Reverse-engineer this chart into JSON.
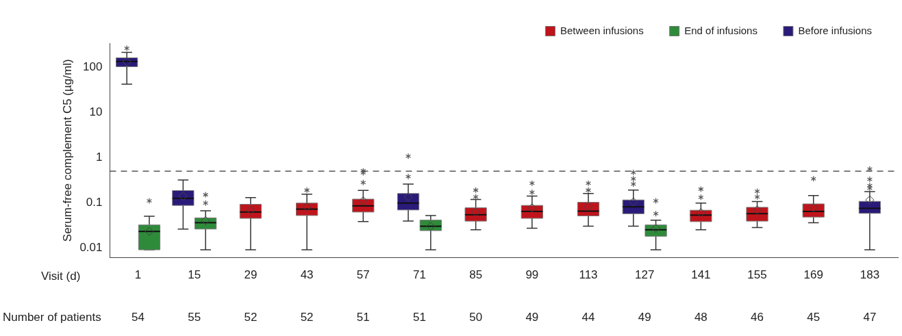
{
  "chart_data": {
    "type": "box",
    "xlabel": "Visit (d)",
    "ylabel": "Serum-free complement C5 (µg/ml)",
    "categories": [
      "1",
      "15",
      "29",
      "43",
      "57",
      "71",
      "85",
      "99",
      "113",
      "127",
      "141",
      "155",
      "169",
      "183"
    ],
    "log": "y",
    "ylim": [
      0.006,
      350
    ],
    "yticks": [
      0.01,
      0.1,
      1,
      10,
      100
    ],
    "grid": false,
    "legend": "top right",
    "ref_lines": [
      {
        "axis": "y",
        "value": 0.5,
        "line_style": "dashed"
      }
    ],
    "series": [
      {
        "name": "Before infusions",
        "color": "#2a1a7a",
        "boxes": [
          {
            "low": 43,
            "q1": 105,
            "median": 137,
            "q3": 165,
            "high": 218,
            "mean": 135,
            "outliers": [
              270
            ]
          },
          {
            "low": 0.026,
            "q1": 0.087,
            "median": 0.125,
            "q3": 0.186,
            "high": 0.32,
            "mean": 0.14
          },
          null,
          null,
          null,
          {
            "low": 0.039,
            "q1": 0.069,
            "median": 0.098,
            "q3": 0.16,
            "high": 0.26,
            "mean": 0.134,
            "outliers": [
              1.08,
              0.38
            ]
          },
          null,
          null,
          null,
          {
            "low": 0.03,
            "q1": 0.057,
            "median": 0.081,
            "q3": 0.115,
            "high": 0.19,
            "mean": 0.104,
            "outliers": [
              0.47,
              0.34,
              0.26
            ]
          },
          null,
          null,
          null,
          {
            "low": 0.009,
            "q1": 0.058,
            "median": 0.075,
            "q3": 0.107,
            "high": 0.177,
            "mean": 0.115,
            "outliers": [
              0.56,
              0.33,
              0.24,
              0.21
            ]
          }
        ]
      },
      {
        "name": "End of infusions",
        "color": "#2e8b3a",
        "boxes": [
          {
            "low": 0.009,
            "q1": 0.009,
            "median": 0.023,
            "q3": 0.032,
            "high": 0.05,
            "mean": 0.023,
            "outliers": [
              0.11
            ]
          },
          {
            "low": 0.009,
            "q1": 0.026,
            "median": 0.036,
            "q3": 0.046,
            "high": 0.066,
            "mean": 0.04,
            "outliers": [
              0.15,
              0.098
            ]
          },
          null,
          null,
          null,
          {
            "low": 0.009,
            "q1": 0.024,
            "median": 0.03,
            "q3": 0.041,
            "high": 0.052,
            "mean": 0.03
          },
          null,
          null,
          null,
          {
            "low": 0.009,
            "q1": 0.018,
            "median": 0.025,
            "q3": 0.032,
            "high": 0.041,
            "mean": 0.027,
            "outliers": [
              0.11,
              0.057
            ]
          },
          null,
          null,
          null,
          null
        ]
      },
      {
        "name": "Between infusions",
        "color": "#c0141c",
        "boxes": [
          null,
          null,
          {
            "low": 0.009,
            "q1": 0.045,
            "median": 0.062,
            "q3": 0.092,
            "high": 0.13,
            "mean": 0.068
          },
          {
            "low": 0.009,
            "q1": 0.052,
            "median": 0.072,
            "q3": 0.098,
            "high": 0.155,
            "mean": 0.08,
            "outliers": [
              0.19
            ]
          },
          {
            "low": 0.038,
            "q1": 0.062,
            "median": 0.085,
            "q3": 0.12,
            "high": 0.188,
            "mean": 0.11,
            "outliers": [
              0.51,
              0.46,
              0.28
            ]
          },
          null,
          {
            "low": 0.025,
            "q1": 0.039,
            "median": 0.054,
            "q3": 0.077,
            "high": 0.118,
            "mean": 0.062,
            "outliers": [
              0.19,
              0.134
            ]
          },
          {
            "low": 0.027,
            "q1": 0.045,
            "median": 0.064,
            "q3": 0.087,
            "high": 0.14,
            "mean": 0.077,
            "outliers": [
              0.27,
              0.17
            ]
          },
          {
            "low": 0.03,
            "q1": 0.051,
            "median": 0.065,
            "q3": 0.102,
            "high": 0.16,
            "mean": 0.083,
            "outliers": [
              0.27,
              0.19
            ]
          },
          null,
          {
            "low": 0.025,
            "q1": 0.038,
            "median": 0.053,
            "q3": 0.068,
            "high": 0.098,
            "mean": 0.06,
            "outliers": [
              0.2,
              0.132
            ]
          },
          {
            "low": 0.028,
            "q1": 0.039,
            "median": 0.057,
            "q3": 0.079,
            "high": 0.106,
            "mean": 0.069,
            "outliers": [
              0.18,
              0.134
            ]
          },
          {
            "low": 0.036,
            "q1": 0.048,
            "median": 0.064,
            "q3": 0.094,
            "high": 0.144,
            "mean": 0.077,
            "outliers": [
              0.34
            ]
          },
          null
        ]
      }
    ],
    "annotations": [
      "Number of patients",
      "54",
      "55",
      "52",
      "52",
      "51",
      "51",
      "50",
      "49",
      "44",
      "49",
      "48",
      "46",
      "45",
      "47"
    ]
  }
}
